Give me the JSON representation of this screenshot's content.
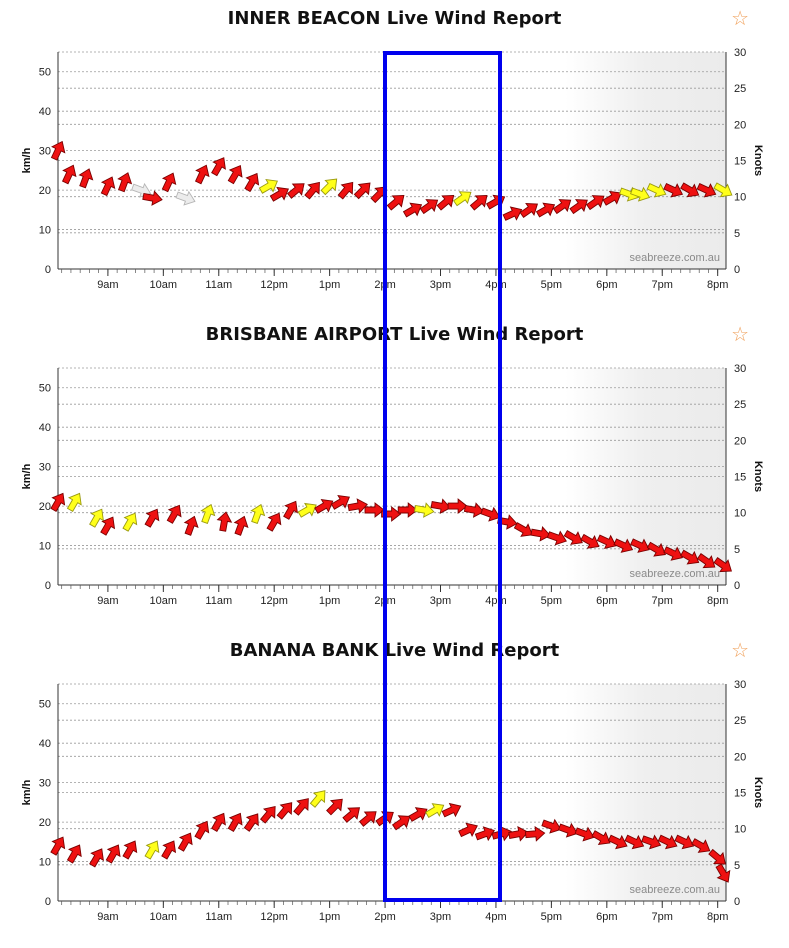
{
  "watermark": "seabreeze.com.au",
  "colors": {
    "calm": "#ececec",
    "moderate": "#ffff1a",
    "strong": "#ee1111",
    "highlight_box": "#0000ee"
  },
  "icons": {
    "favorite": "star-icon"
  },
  "x_ticks": [
    "9am",
    "10am",
    "11am",
    "12pm",
    "1pm",
    "2pm",
    "3pm",
    "4pm",
    "5pm",
    "6pm",
    "7pm",
    "8pm"
  ],
  "kmh_ticks": [
    "0",
    "10",
    "20",
    "30",
    "40",
    "50"
  ],
  "knot_ticks": [
    "0",
    "5",
    "10",
    "15",
    "20",
    "25",
    "30"
  ],
  "highlight": {
    "from_hour": 14,
    "to_hour": 16
  },
  "charts": [
    {
      "title": "INNER BEACON Live Wind Report",
      "favorite_symbol": "☆",
      "chart_data": {
        "type": "scatter",
        "title": "INNER BEACON Live Wind Report",
        "ylabel_left": "km/h",
        "ylabel_right": "Knots",
        "ylim_kmh": [
          0,
          55
        ],
        "ylim_knots": [
          0,
          30
        ],
        "xlim_hours": [
          8.1,
          20.15
        ],
        "grid": true,
        "night_shade_from_hour": 17.25,
        "series": [
          {
            "values_kmh": [
              [
                8.1,
                30,
                25,
                3
              ],
              [
                8.3,
                24,
                25,
                3
              ],
              [
                8.6,
                23,
                20,
                3
              ],
              [
                9.0,
                21,
                25,
                3
              ],
              [
                9.3,
                22,
                20,
                3
              ],
              [
                9.6,
                20,
                110,
                0
              ],
              [
                9.8,
                18,
                100,
                2
              ],
              [
                10.1,
                22,
                25,
                3
              ],
              [
                10.4,
                18,
                110,
                0
              ],
              [
                10.7,
                24,
                25,
                3
              ],
              [
                11.0,
                26,
                30,
                3
              ],
              [
                11.3,
                24,
                30,
                3
              ],
              [
                11.6,
                22,
                30,
                3
              ],
              [
                11.9,
                21,
                60,
                1
              ],
              [
                12.1,
                19,
                60,
                2
              ],
              [
                12.4,
                20,
                50,
                2
              ],
              [
                12.7,
                20,
                40,
                2
              ],
              [
                13.0,
                21,
                45,
                1
              ],
              [
                13.3,
                20,
                40,
                2
              ],
              [
                13.6,
                20,
                45,
                2
              ],
              [
                13.9,
                19,
                45,
                2
              ],
              [
                14.2,
                17,
                50,
                2
              ],
              [
                14.5,
                15,
                60,
                2
              ],
              [
                14.8,
                16,
                55,
                2
              ],
              [
                15.1,
                17,
                50,
                2
              ],
              [
                15.4,
                18,
                55,
                1
              ],
              [
                15.7,
                17,
                50,
                2
              ],
              [
                16.0,
                17,
                60,
                2
              ],
              [
                16.3,
                14,
                65,
                3
              ],
              [
                16.6,
                15,
                55,
                2
              ],
              [
                16.9,
                15,
                60,
                2
              ],
              [
                17.2,
                16,
                55,
                2
              ],
              [
                17.5,
                16,
                55,
                2
              ],
              [
                17.8,
                17,
                55,
                2
              ],
              [
                18.1,
                18,
                60,
                2
              ],
              [
                18.4,
                19,
                110,
                1
              ],
              [
                18.6,
                19,
                110,
                1
              ],
              [
                18.9,
                20,
                115,
                1
              ],
              [
                19.2,
                20,
                115,
                2
              ],
              [
                19.5,
                20,
                120,
                2
              ],
              [
                19.8,
                20,
                115,
                2
              ],
              [
                20.1,
                20,
                120,
                1
              ]
            ]
          }
        ]
      }
    },
    {
      "title": "BRISBANE AIRPORT Live Wind Report",
      "favorite_symbol": "☆",
      "chart_data": {
        "type": "scatter",
        "title": "BRISBANE AIRPORT Live Wind Report",
        "ylabel_left": "km/h",
        "ylabel_right": "Knots",
        "ylim_kmh": [
          0,
          55
        ],
        "ylim_knots": [
          0,
          30
        ],
        "xlim_hours": [
          8.1,
          20.15
        ],
        "grid": true,
        "night_shade_from_hour": 17.25,
        "series": [
          {
            "values_kmh": [
              [
                8.1,
                21,
                30,
                3
              ],
              [
                8.4,
                21,
                30,
                1
              ],
              [
                8.8,
                17,
                30,
                1
              ],
              [
                9.0,
                15,
                30,
                2
              ],
              [
                9.4,
                16,
                30,
                1
              ],
              [
                9.8,
                17,
                30,
                2
              ],
              [
                10.2,
                18,
                30,
                2
              ],
              [
                10.5,
                15,
                20,
                2
              ],
              [
                10.8,
                18,
                20,
                1
              ],
              [
                11.1,
                16,
                10,
                2
              ],
              [
                11.4,
                15,
                20,
                2
              ],
              [
                11.7,
                18,
                20,
                1
              ],
              [
                12.0,
                16,
                30,
                2
              ],
              [
                12.3,
                19,
                30,
                2
              ],
              [
                12.6,
                19,
                60,
                1
              ],
              [
                12.9,
                20,
                60,
                2
              ],
              [
                13.2,
                21,
                60,
                2
              ],
              [
                13.5,
                20,
                80,
                3
              ],
              [
                13.8,
                19,
                90,
                2
              ],
              [
                14.1,
                18,
                90,
                2
              ],
              [
                14.4,
                19,
                90,
                2
              ],
              [
                14.7,
                19,
                100,
                1
              ],
              [
                15.0,
                20,
                100,
                2
              ],
              [
                15.3,
                20,
                90,
                2
              ],
              [
                15.6,
                19,
                100,
                2
              ],
              [
                15.9,
                18,
                110,
                2
              ],
              [
                16.2,
                16,
                100,
                2
              ],
              [
                16.5,
                14,
                120,
                2
              ],
              [
                16.8,
                13,
                100,
                2
              ],
              [
                17.1,
                12,
                110,
                2
              ],
              [
                17.4,
                12,
                120,
                2
              ],
              [
                17.7,
                11,
                120,
                2
              ],
              [
                18.0,
                11,
                115,
                2
              ],
              [
                18.3,
                10,
                115,
                2
              ],
              [
                18.6,
                10,
                115,
                2
              ],
              [
                18.9,
                9,
                120,
                2
              ],
              [
                19.2,
                8,
                115,
                2
              ],
              [
                19.5,
                7,
                120,
                2
              ],
              [
                19.8,
                6,
                125,
                2
              ],
              [
                20.1,
                5,
                125,
                3
              ]
            ]
          }
        ]
      }
    },
    {
      "title": "BANANA BANK Live Wind Report",
      "favorite_symbol": "☆",
      "chart_data": {
        "type": "scatter",
        "title": "BANANA BANK Live Wind Report",
        "ylabel_left": "km/h",
        "ylabel_right": "Knots",
        "ylim_kmh": [
          0,
          55
        ],
        "ylim_knots": [
          0,
          30
        ],
        "xlim_hours": [
          8.1,
          20.15
        ],
        "grid": true,
        "night_shade_from_hour": 17.25,
        "series": [
          {
            "values_kmh": [
              [
                8.1,
                14,
                30,
                2
              ],
              [
                8.4,
                12,
                30,
                3
              ],
              [
                8.8,
                11,
                30,
                2
              ],
              [
                9.1,
                12,
                30,
                2
              ],
              [
                9.4,
                13,
                30,
                2
              ],
              [
                9.8,
                13,
                30,
                1
              ],
              [
                10.1,
                13,
                30,
                2
              ],
              [
                10.4,
                15,
                30,
                2
              ],
              [
                10.7,
                18,
                30,
                2
              ],
              [
                11.0,
                20,
                30,
                2
              ],
              [
                11.3,
                20,
                30,
                2
              ],
              [
                11.6,
                20,
                35,
                2
              ],
              [
                11.9,
                22,
                40,
                2
              ],
              [
                12.2,
                23,
                40,
                3
              ],
              [
                12.5,
                24,
                40,
                2
              ],
              [
                12.8,
                26,
                40,
                1
              ],
              [
                13.1,
                24,
                45,
                3
              ],
              [
                13.4,
                22,
                50,
                2
              ],
              [
                13.7,
                21,
                50,
                2
              ],
              [
                14.0,
                21,
                55,
                3
              ],
              [
                14.3,
                20,
                55,
                2
              ],
              [
                14.6,
                22,
                60,
                3
              ],
              [
                14.9,
                23,
                60,
                1
              ],
              [
                15.2,
                23,
                65,
                3
              ],
              [
                15.5,
                18,
                65,
                2
              ],
              [
                15.8,
                17,
                70,
                2
              ],
              [
                16.1,
                17,
                75,
                2
              ],
              [
                16.4,
                17,
                80,
                2
              ],
              [
                16.7,
                17,
                85,
                2
              ],
              [
                17.0,
                19,
                110,
                3
              ],
              [
                17.3,
                18,
                110,
                2
              ],
              [
                17.6,
                17,
                110,
                2
              ],
              [
                17.9,
                16,
                120,
                2
              ],
              [
                18.2,
                15,
                115,
                2
              ],
              [
                18.5,
                15,
                115,
                2
              ],
              [
                18.8,
                15,
                110,
                2
              ],
              [
                19.1,
                15,
                115,
                2
              ],
              [
                19.4,
                15,
                115,
                2
              ],
              [
                19.7,
                14,
                120,
                2
              ],
              [
                20.0,
                11,
                130,
                2
              ],
              [
                20.1,
                7,
                150,
                2
              ]
            ]
          }
        ]
      }
    }
  ]
}
